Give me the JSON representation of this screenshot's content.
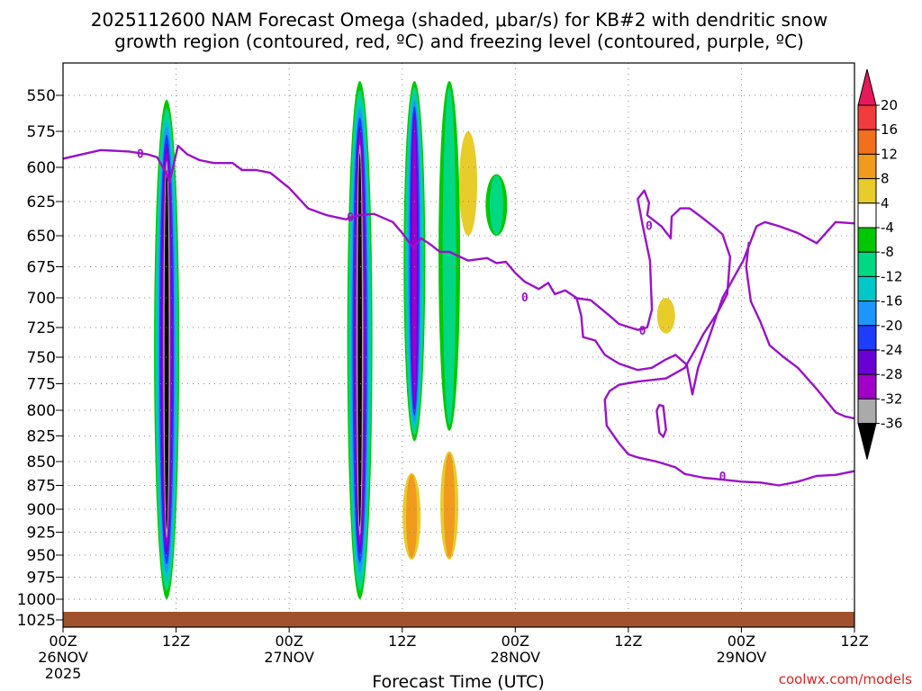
{
  "title_line1": "2025112600 NAM Forecast Omega (shaded, μbar/s) for KB#2 with dendritic snow",
  "title_line2": "growth region (contoured, red, ºC) and freezing level (contoured, purple, ºC)",
  "x_axis_label": "Forecast Time (UTC)",
  "credit": "coolwx.com/models",
  "colors": {
    "freezing_level": "#9a12c8",
    "terrain": "#a0522d",
    "grid": "#888888"
  },
  "chart_data": {
    "type": "heatmap",
    "title": "2025112600 NAM Forecast Omega (shaded, μbar/s) for KB#2 with dendritic snow growth region (contoured, red, ºC) and freezing level (contoured, purple, ºC)",
    "xlabel": "Forecast Time (UTC)",
    "ylabel": "",
    "x_range_hours": [
      0,
      84
    ],
    "y_scale": "pressure (reversed)",
    "y_ticks": [
      "550",
      "575",
      "600",
      "625",
      "650",
      "675",
      "700",
      "725",
      "750",
      "775",
      "800",
      "825",
      "850",
      "875",
      "900",
      "925",
      "950",
      "975",
      "1000",
      "1025"
    ],
    "x_ticks": [
      {
        "hour": 0,
        "top": "00Z",
        "mid": "26NOV",
        "bot": "2025"
      },
      {
        "hour": 12,
        "top": "12Z",
        "mid": "",
        "bot": ""
      },
      {
        "hour": 24,
        "top": "00Z",
        "mid": "27NOV",
        "bot": ""
      },
      {
        "hour": 36,
        "top": "12Z",
        "mid": "",
        "bot": ""
      },
      {
        "hour": 48,
        "top": "00Z",
        "mid": "28NOV",
        "bot": ""
      },
      {
        "hour": 60,
        "top": "12Z",
        "mid": "",
        "bot": ""
      },
      {
        "hour": 72,
        "top": "00Z",
        "mid": "29NOV",
        "bot": ""
      },
      {
        "hour": 84,
        "top": "12Z",
        "mid": "",
        "bot": ""
      }
    ],
    "colorbar": {
      "labels": [
        "20",
        "16",
        "12",
        "8",
        "4",
        "-4",
        "-8",
        "-12",
        "-16",
        "-20",
        "-24",
        "-28",
        "-32",
        "-36"
      ],
      "colors": [
        "#e8195a",
        "#f23c3c",
        "#f0701e",
        "#f09a1e",
        "#e8cc2a",
        "#ffffff",
        "#00c800",
        "#00d884",
        "#00c8c8",
        "#1e96ff",
        "#1e3cff",
        "#6a00d6",
        "#a000c8",
        "#aaaaaa",
        "#000000"
      ]
    },
    "omega_features": [
      {
        "hour": 11.0,
        "p_top": 553,
        "p_bot": 1000,
        "min_value": -36
      },
      {
        "hour": 31.5,
        "p_top": 540,
        "p_bot": 1000,
        "min_value": -36
      },
      {
        "hour": 37.3,
        "p_top": 540,
        "p_bot": 830,
        "min_value": -28
      },
      {
        "hour": 41.0,
        "p_top": 540,
        "p_bot": 820,
        "min_value": -8
      },
      {
        "hour": 46.0,
        "p_top": 605,
        "p_bot": 650,
        "min_value": -8
      },
      {
        "hour": 37.0,
        "p_top": 862,
        "p_bot": 955,
        "max_value": 8
      },
      {
        "hour": 41.0,
        "p_top": 840,
        "p_bot": 955,
        "max_value": 8
      },
      {
        "hour": 43.0,
        "p_top": 575,
        "p_bot": 650,
        "max_value": 4
      },
      {
        "hour": 64.0,
        "p_top": 700,
        "p_bot": 730,
        "max_value": 4
      }
    ],
    "freezing_level_contour_label": "0",
    "freezing_level_main": [
      [
        0,
        594
      ],
      [
        2,
        591
      ],
      [
        4,
        588
      ],
      [
        7,
        589
      ],
      [
        9,
        591
      ],
      [
        10,
        593
      ],
      [
        11,
        605
      ],
      [
        11.3,
        611
      ],
      [
        11.6,
        602
      ],
      [
        12.2,
        585
      ],
      [
        13.2,
        591
      ],
      [
        14.5,
        595
      ],
      [
        16,
        597
      ],
      [
        18,
        597
      ],
      [
        19,
        602
      ],
      [
        20.5,
        602
      ],
      [
        22,
        604
      ],
      [
        24,
        615
      ],
      [
        26,
        630
      ],
      [
        28,
        635
      ],
      [
        30,
        638
      ],
      [
        31.5,
        635
      ],
      [
        33,
        634
      ],
      [
        35,
        640
      ],
      [
        36,
        648
      ],
      [
        37.2,
        660
      ],
      [
        38,
        652
      ],
      [
        39,
        657
      ],
      [
        40,
        663
      ],
      [
        41,
        663
      ],
      [
        43,
        670
      ],
      [
        45,
        668
      ],
      [
        46,
        672
      ],
      [
        47,
        671
      ],
      [
        48,
        680
      ],
      [
        49,
        687
      ],
      [
        50.5,
        693
      ],
      [
        51.5,
        688
      ],
      [
        52.2,
        697
      ],
      [
        53.3,
        694
      ],
      [
        54.5,
        700
      ],
      [
        55,
        715
      ],
      [
        55.2,
        733
      ],
      [
        56.5,
        736
      ],
      [
        57.5,
        748
      ],
      [
        59,
        756
      ],
      [
        61,
        762
      ],
      [
        62.5,
        760
      ],
      [
        64,
        752
      ],
      [
        65,
        748
      ],
      [
        66.2,
        757
      ],
      [
        66.8,
        785
      ],
      [
        67.4,
        760
      ],
      [
        68.5,
        735
      ],
      [
        70,
        700
      ],
      [
        72.2,
        670
      ],
      [
        73.6,
        643
      ],
      [
        74.5,
        640
      ],
      [
        76,
        643
      ],
      [
        78,
        648
      ],
      [
        80,
        656
      ],
      [
        82,
        640
      ],
      [
        84,
        641
      ]
    ],
    "freezing_level_lower": [
      [
        63,
        800
      ],
      [
        63.3,
        822
      ],
      [
        63.7,
        826
      ],
      [
        64,
        819
      ],
      [
        63.7,
        796
      ],
      [
        63.3,
        795
      ],
      [
        63,
        800
      ]
    ],
    "freezing_level_closed": [
      [
        54.2,
        700
      ],
      [
        56,
        702
      ],
      [
        58,
        715
      ],
      [
        59,
        722
      ],
      [
        61,
        727
      ],
      [
        62,
        725
      ],
      [
        62.5,
        710
      ],
      [
        62.3,
        670
      ],
      [
        61.5,
        642
      ],
      [
        61,
        623
      ],
      [
        61.7,
        617
      ],
      [
        62.2,
        626
      ],
      [
        62,
        635
      ],
      [
        63.5,
        643
      ],
      [
        64.5,
        652
      ],
      [
        64.6,
        636
      ],
      [
        65.5,
        630
      ],
      [
        66.5,
        630
      ],
      [
        67.5,
        635
      ],
      [
        69,
        643
      ],
      [
        70,
        649
      ],
      [
        70.8,
        667
      ],
      [
        70.5,
        697
      ],
      [
        69.5,
        712
      ],
      [
        68,
        730
      ],
      [
        67,
        745
      ],
      [
        66,
        760
      ],
      [
        64,
        770
      ],
      [
        61,
        773
      ],
      [
        59,
        776
      ],
      [
        58,
        782
      ],
      [
        57.5,
        790
      ],
      [
        57.7,
        815
      ],
      [
        59,
        832
      ],
      [
        60,
        843
      ],
      [
        61,
        846
      ],
      [
        63,
        850
      ],
      [
        65,
        856
      ],
      [
        66,
        863
      ],
      [
        68,
        867
      ],
      [
        70,
        869
      ],
      [
        72,
        871
      ],
      [
        74,
        872
      ],
      [
        76,
        875
      ],
      [
        78,
        871
      ],
      [
        80,
        865
      ],
      [
        82,
        864
      ],
      [
        84,
        860
      ]
    ],
    "freezing_level_right": [
      [
        84,
        808
      ],
      [
        83,
        806
      ],
      [
        82,
        802
      ],
      [
        80,
        780
      ],
      [
        78,
        760
      ],
      [
        76.5,
        750
      ],
      [
        75,
        740
      ],
      [
        74,
        720
      ],
      [
        73,
        703
      ],
      [
        72.5,
        675
      ],
      [
        72.8,
        655
      ]
    ]
  }
}
